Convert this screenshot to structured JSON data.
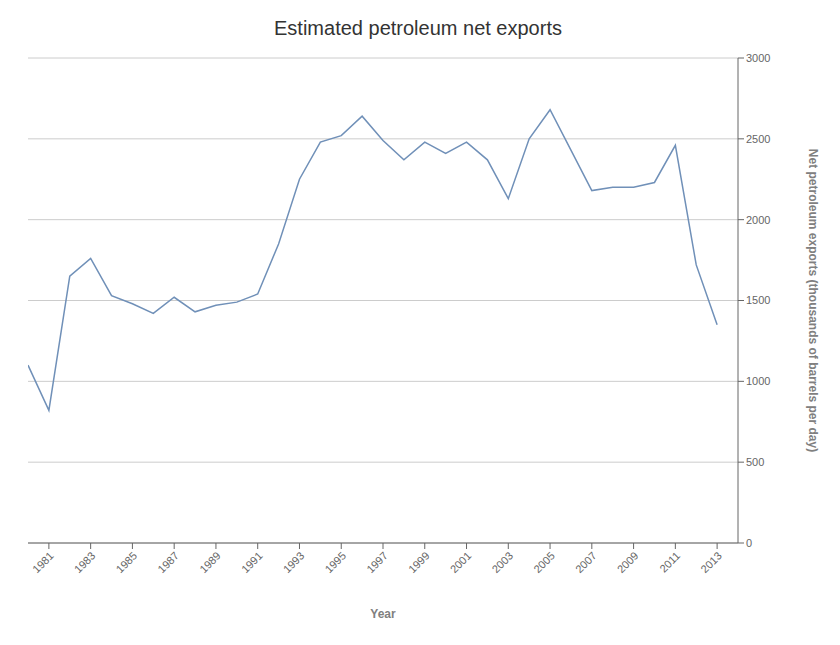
{
  "chart_data": {
    "type": "line",
    "title": "Estimated petroleum net exports",
    "xlabel": "Year",
    "ylabel": "Net petroleum exports (thousands of barrels per day)",
    "color": "#7090b8",
    "x": [
      1980,
      1981,
      1982,
      1983,
      1984,
      1985,
      1986,
      1987,
      1988,
      1989,
      1990,
      1991,
      1992,
      1993,
      1994,
      1995,
      1996,
      1997,
      1998,
      1999,
      2000,
      2001,
      2002,
      2003,
      2004,
      2005,
      2006,
      2007,
      2008,
      2009,
      2010,
      2011,
      2012,
      2013
    ],
    "values": [
      1100,
      820,
      1650,
      1760,
      1530,
      1480,
      1420,
      1520,
      1430,
      1470,
      1490,
      1540,
      1850,
      2250,
      2480,
      2520,
      2640,
      2490,
      2370,
      2480,
      2410,
      2480,
      2370,
      2130,
      2500,
      2680,
      2430,
      2180,
      2200,
      2200,
      2230,
      2460,
      1720,
      1350
    ],
    "xlim": [
      1980,
      2014
    ],
    "ylim": [
      0,
      3000
    ],
    "xticks": [
      1981,
      1983,
      1985,
      1987,
      1989,
      1991,
      1993,
      1995,
      1997,
      1999,
      2001,
      2003,
      2005,
      2007,
      2009,
      2011,
      2013
    ],
    "yticks": [
      0,
      500,
      1000,
      1500,
      2000,
      2500,
      3000
    ],
    "grid": true
  }
}
